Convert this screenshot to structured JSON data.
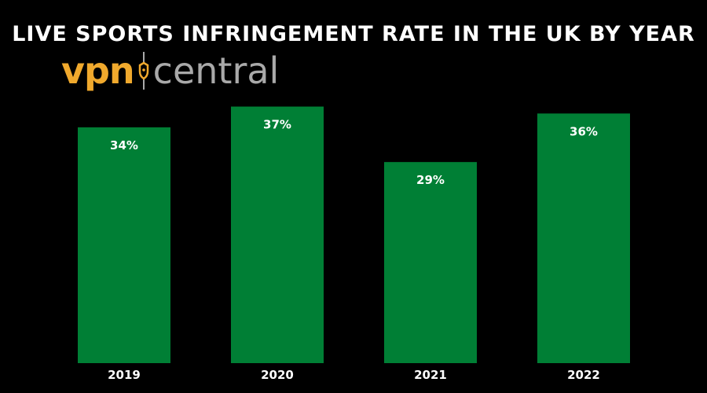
{
  "logo": {
    "part1": "vpn",
    "part2": "central",
    "accent_color": "#f0a92d",
    "secondary_color": "#a9a9a9"
  },
  "chart_data": {
    "type": "bar",
    "title": "LIVE SPORTS INFRINGEMENT RATE IN THE UK BY YEAR",
    "categories": [
      "2019",
      "2020",
      "2021",
      "2022"
    ],
    "values": [
      34,
      37,
      29,
      36
    ],
    "value_labels": [
      "34%",
      "37%",
      "29%",
      "36%"
    ],
    "unit": "%",
    "ylim": [
      0,
      45
    ],
    "bar_color": "#007f35",
    "background": "#000000",
    "grid": false,
    "legend": "none"
  }
}
